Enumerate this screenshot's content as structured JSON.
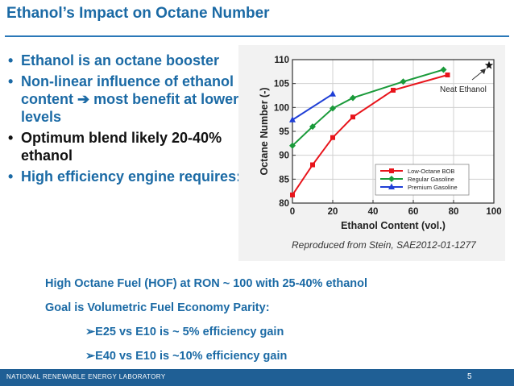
{
  "title": "Ethanol’s Impact on Octane Number",
  "bullets": [
    "Ethanol is an octane booster",
    "Non-linear influence of ethanol content ➔ most benefit at lower levels",
    "Optimum blend likely 20-40% ethanol",
    "High efficiency engine requires:"
  ],
  "sub_points": [
    "High Octane Fuel (HOF) at RON ~ 100 with 25-40% ethanol",
    "Goal is Volumetric Fuel Economy Parity:"
  ],
  "sub_sub_points": [
    "➢E25 vs E10 is ~ 5% efficiency gain",
    "➢E40 vs E10 is ~10% efficiency gain"
  ],
  "footer": {
    "lab": "NATIONAL RENEWABLE ENERGY LABORATORY",
    "page": "5"
  },
  "chart_data": {
    "type": "line",
    "xlabel": "Ethanol Content (vol.)",
    "ylabel": "Octane Number (-)",
    "xlim": [
      0,
      100
    ],
    "ylim": [
      80,
      110
    ],
    "xticks": [
      "0",
      "20",
      "40",
      "60",
      "80",
      "100"
    ],
    "yticks": [
      "80",
      "85",
      "90",
      "95",
      "100",
      "105",
      "110"
    ],
    "grid": true,
    "legend_position": "right-middle",
    "series": [
      {
        "name": "Low-Octane BOB",
        "color": "#e8141b",
        "marker": "square",
        "x": [
          0,
          10,
          20,
          30,
          50,
          77
        ],
        "y": [
          81.7,
          88,
          93.7,
          98,
          103.6,
          106.8
        ]
      },
      {
        "name": "Regular Gasoline",
        "color": "#1a9a3a",
        "marker": "diamond",
        "x": [
          0,
          10,
          20,
          30,
          55,
          75
        ],
        "y": [
          92,
          96,
          99.8,
          102,
          105.4,
          107.9
        ]
      },
      {
        "name": "Premium Gasoline",
        "color": "#1f3fd6",
        "marker": "triangle",
        "x": [
          0,
          20
        ],
        "y": [
          97.4,
          102.8
        ]
      }
    ],
    "annotations": [
      {
        "text": "Neat Ethanol",
        "x": 100,
        "y": 108.8,
        "marker": "star"
      }
    ],
    "source": "Reproduced from Stein, SAE2012-01-1277"
  }
}
